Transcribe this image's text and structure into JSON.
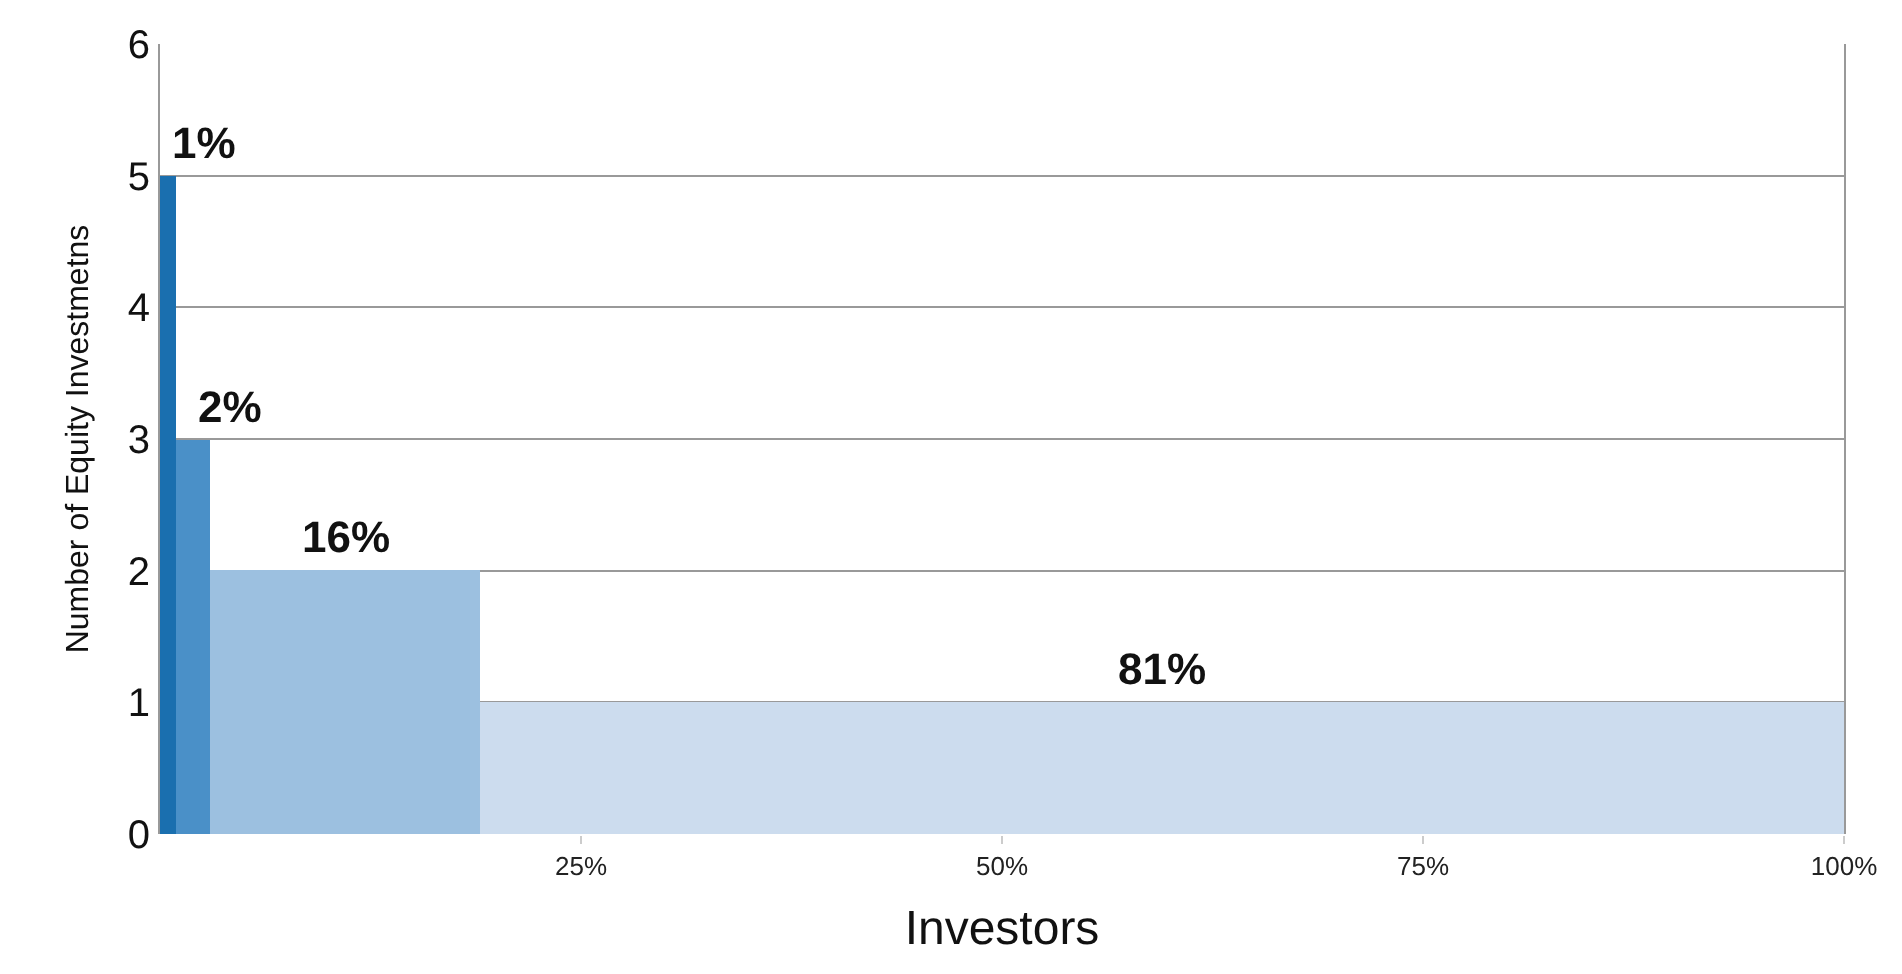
{
  "chart_data": {
    "type": "histogram",
    "xlabel": "Investors",
    "ylabel": "Number of Equity Investmetns",
    "bins": [
      0,
      1,
      3,
      19,
      100
    ],
    "values": [
      5,
      3,
      2,
      1
    ],
    "colors": [
      "#1a6faf",
      "#4a90c8",
      "#9cc0e0",
      "#ccdcee"
    ],
    "annotations": [
      {
        "text": "1%",
        "x": 0.5,
        "y": 5
      },
      {
        "text": "2%",
        "x": 2,
        "y": 3
      },
      {
        "text": "16%",
        "x": 11,
        "y": 2
      },
      {
        "text": "81%",
        "x": 59.5,
        "y": 1
      }
    ],
    "xlim": [
      0,
      100
    ],
    "xticks": [
      {
        "value": 25,
        "label": "25%"
      },
      {
        "value": 50,
        "label": "50%"
      },
      {
        "value": 75,
        "label": "75%"
      },
      {
        "value": 100,
        "label": "100%"
      }
    ],
    "ylim": [
      0,
      6
    ],
    "yticks": [
      0,
      1,
      2,
      3,
      4,
      5,
      6
    ],
    "grid": "y"
  }
}
